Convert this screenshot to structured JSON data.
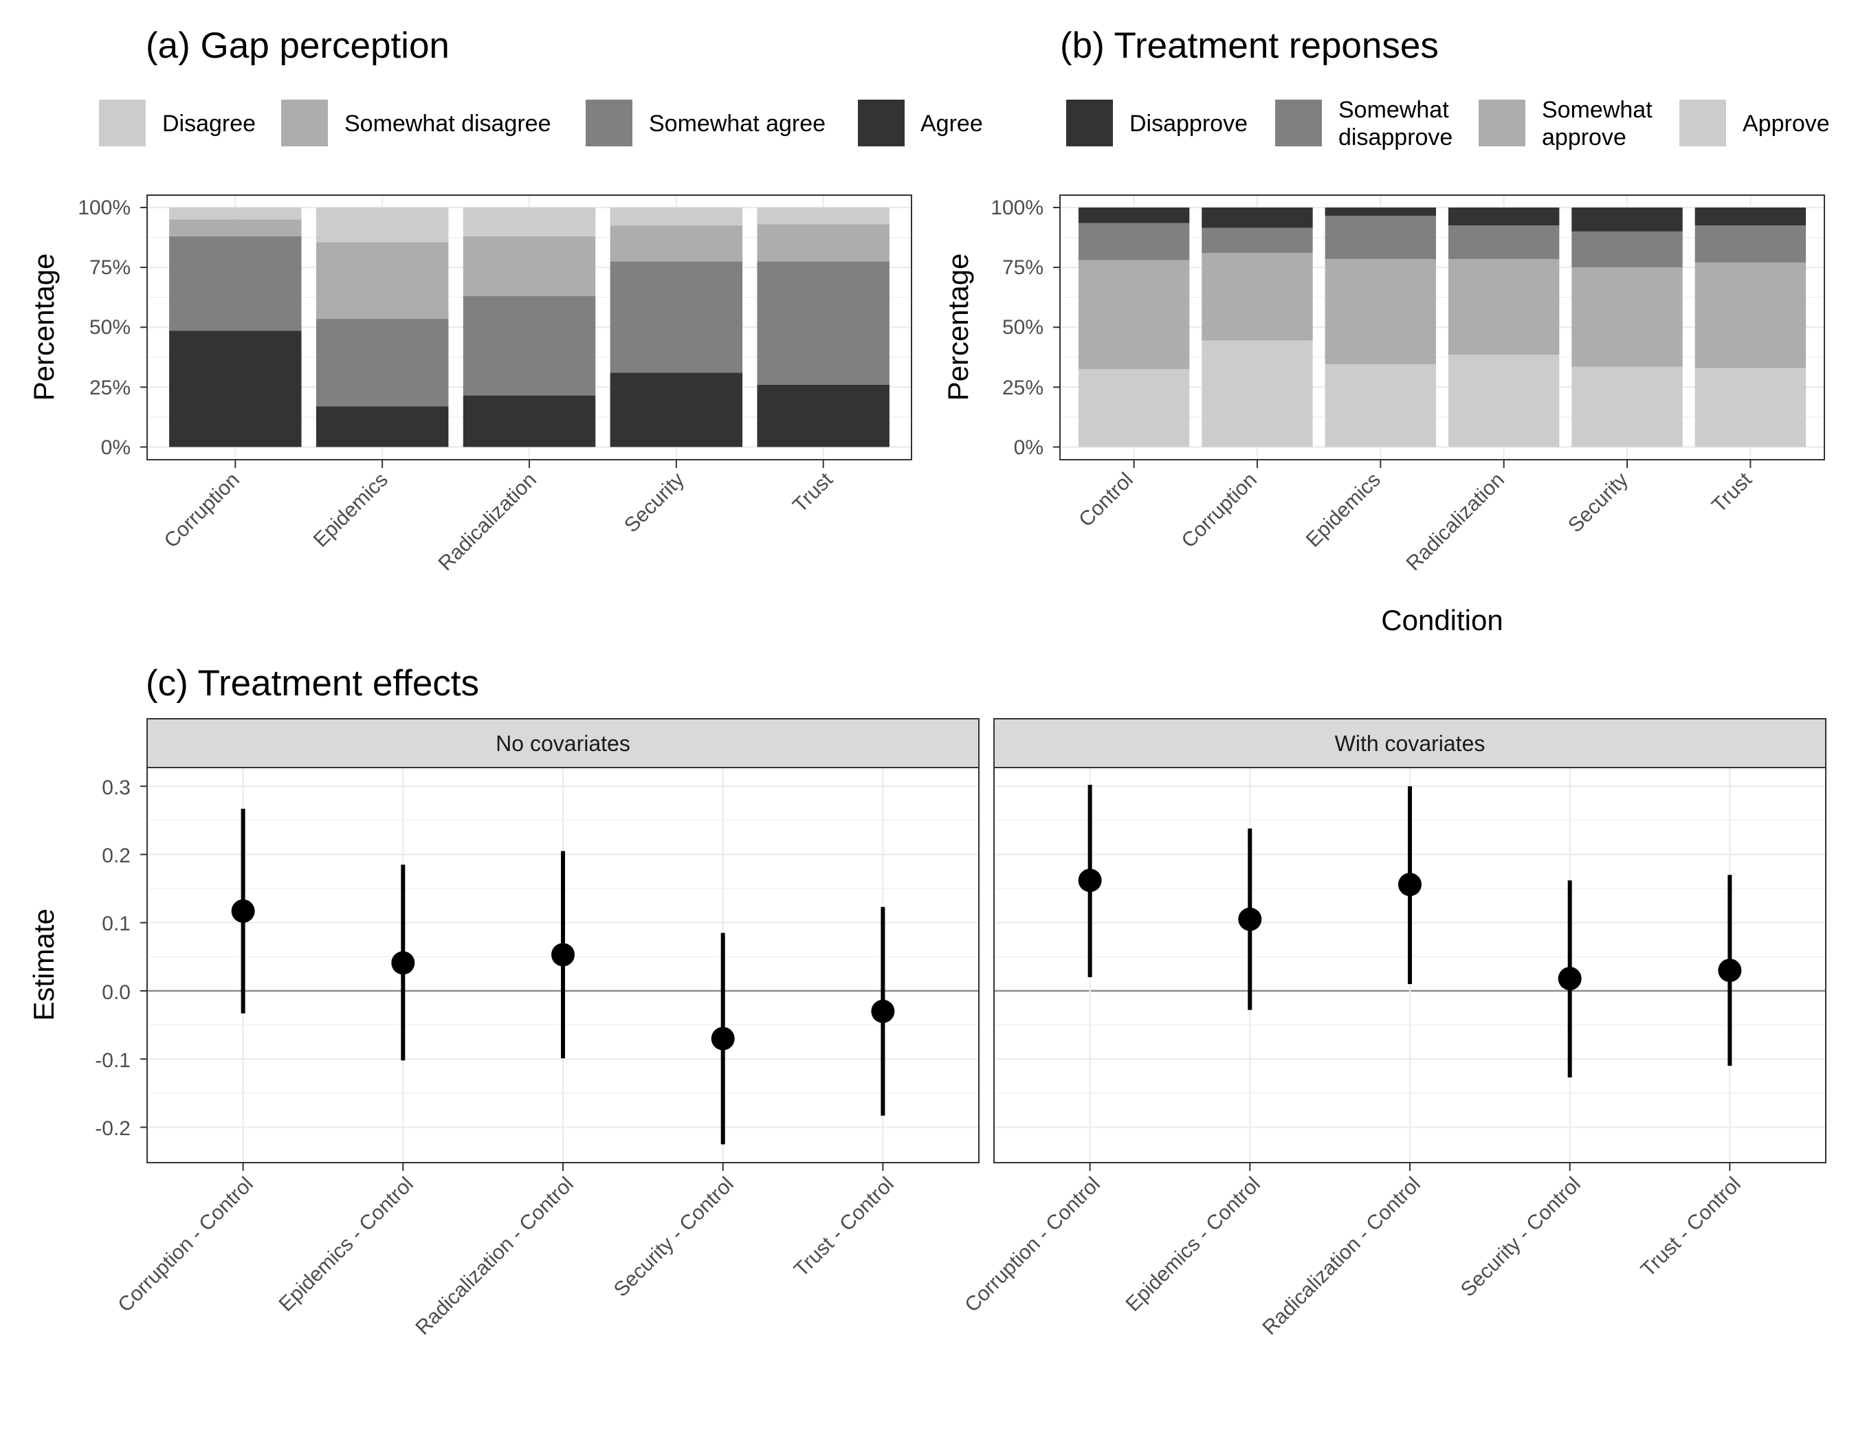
{
  "chart_data": [
    {
      "id": "a",
      "type": "bar",
      "stacked": true,
      "title": "(a) Gap perception",
      "xlabel": "",
      "ylabel": "Percentage",
      "ylim": [
        0,
        100
      ],
      "yticks": [
        "0%",
        "25%",
        "50%",
        "75%",
        "100%"
      ],
      "categories": [
        "Corruption",
        "Epidemics",
        "Radicalization",
        "Security",
        "Trust"
      ],
      "legend": [
        "Disagree",
        "Somewhat disagree",
        "Somewhat agree",
        "Agree"
      ],
      "series": [
        {
          "name": "Agree",
          "color": "#333333",
          "values": [
            48.5,
            17,
            21.5,
            31,
            26
          ]
        },
        {
          "name": "Somewhat agree",
          "color": "#808080",
          "values": [
            39.5,
            36.5,
            41.5,
            46.5,
            51.5
          ]
        },
        {
          "name": "Somewhat disagree",
          "color": "#adadad",
          "values": [
            7,
            32,
            25,
            15,
            15.5
          ]
        },
        {
          "name": "Disagree",
          "color": "#cccccc",
          "values": [
            5,
            14.5,
            12,
            7.5,
            7
          ]
        }
      ]
    },
    {
      "id": "b",
      "type": "bar",
      "stacked": true,
      "title": "(b) Treatment reponses",
      "xlabel": "Condition",
      "ylabel": "Percentage",
      "ylim": [
        0,
        100
      ],
      "yticks": [
        "0%",
        "25%",
        "50%",
        "75%",
        "100%"
      ],
      "categories": [
        "Control",
        "Corruption",
        "Epidemics",
        "Radicalization",
        "Security",
        "Trust"
      ],
      "legend": [
        {
          "lines": [
            "Disapprove"
          ]
        },
        {
          "lines": [
            "Somewhat",
            "disapprove"
          ]
        },
        {
          "lines": [
            "Somewhat",
            "approve"
          ]
        },
        {
          "lines": [
            "Approve"
          ]
        }
      ],
      "series": [
        {
          "name": "Approve",
          "color": "#cccccc",
          "values": [
            32.5,
            44.5,
            34.5,
            38.5,
            33.5,
            33
          ]
        },
        {
          "name": "Somewhat approve",
          "color": "#adadad",
          "values": [
            45.5,
            36.5,
            44,
            40,
            41.5,
            44
          ]
        },
        {
          "name": "Somewhat disapprove",
          "color": "#808080",
          "values": [
            15.5,
            10.5,
            18,
            14,
            15,
            15.5
          ]
        },
        {
          "name": "Disapprove",
          "color": "#333333",
          "values": [
            6.5,
            8.5,
            3.5,
            7.5,
            10,
            7.5
          ]
        }
      ]
    },
    {
      "id": "c",
      "type": "scatter",
      "subtype": "pointrange",
      "title": "(c) Treatment effects",
      "xlabel": "",
      "ylabel": "Estimate",
      "ylim": [
        -0.25,
        0.33
      ],
      "yticks": [
        "-0.2",
        "-0.1",
        "0.0",
        "0.1",
        "0.2",
        "0.3"
      ],
      "categories": [
        "Corruption - Control",
        "Epidemics - Control",
        "Radicalization - Control",
        "Security - Control",
        "Trust - Control"
      ],
      "panels": [
        {
          "name": "No covariates",
          "estimates": [
            0.117,
            0.041,
            0.053,
            -0.07,
            -0.03
          ],
          "lower": [
            -0.033,
            -0.102,
            -0.099,
            -0.225,
            -0.183
          ],
          "upper": [
            0.267,
            0.185,
            0.205,
            0.085,
            0.123
          ]
        },
        {
          "name": "With covariates",
          "estimates": [
            0.162,
            0.105,
            0.156,
            0.018,
            0.03
          ],
          "lower": [
            0.02,
            -0.028,
            0.01,
            -0.127,
            -0.11
          ],
          "upper": [
            0.302,
            0.238,
            0.3,
            0.162,
            0.17
          ]
        }
      ]
    }
  ]
}
